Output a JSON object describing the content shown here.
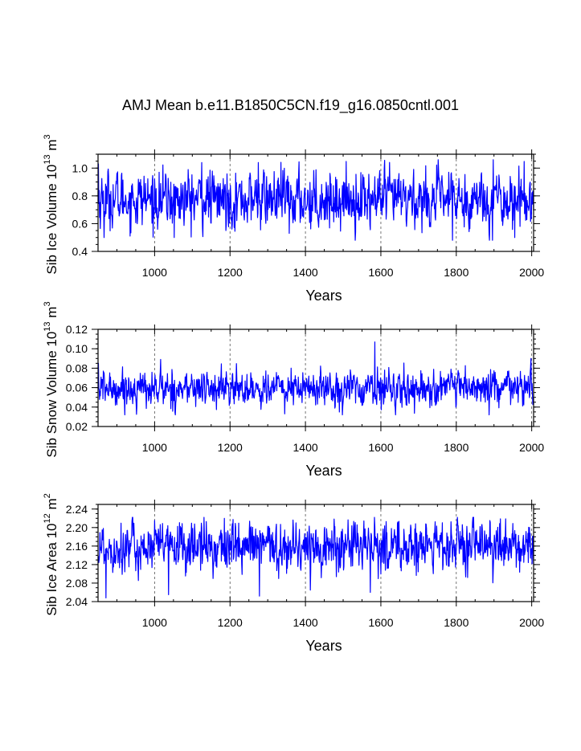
{
  "title": "AMJ Mean b.e11.B1850C5CN.f19_g16.0850cntl.001",
  "line_color": "#0000ff",
  "chart_data": [
    {
      "type": "line",
      "ylabel_main": "Sib Ice Volume 10",
      "ylabel_exp": "13",
      "ylabel_unit": " m",
      "ylabel_unit_exp": "3",
      "xlabel": "Years",
      "xlim": [
        850,
        2005
      ],
      "ylim": [
        0.4,
        1.1
      ],
      "xticks": [
        1000,
        1200,
        1400,
        1600,
        1800,
        2000
      ],
      "xtick_labels": [
        "1000",
        "1200",
        "1400",
        "1600",
        "1800",
        "2000"
      ],
      "yticks": [
        0.4,
        0.6,
        0.8,
        1.0
      ],
      "ytick_labels": [
        "0.4",
        "0.6",
        "0.8",
        "1.0"
      ],
      "gridlines_x": [
        1000,
        1200,
        1400,
        1600,
        1800,
        2000
      ],
      "x_start": 850,
      "x_end": 2005,
      "mean": 0.775,
      "std": 0.095,
      "series_min": 0.48,
      "series_max": 1.06,
      "spikes": [
        {
          "x": 851,
          "y": 1.03
        },
        {
          "x": 866,
          "y": 0.5
        },
        {
          "x": 1052,
          "y": 0.5
        },
        {
          "x": 1125,
          "y": 1.04
        },
        {
          "x": 1275,
          "y": 1.04
        },
        {
          "x": 1357,
          "y": 0.53
        },
        {
          "x": 1790,
          "y": 0.48
        },
        {
          "x": 1898,
          "y": 1.06
        },
        {
          "x": 1955,
          "y": 0.5
        }
      ]
    },
    {
      "type": "line",
      "ylabel_main": "Sib Snow Volume 10",
      "ylabel_exp": "13",
      "ylabel_unit": " m",
      "ylabel_unit_exp": "3",
      "xlabel": "Years",
      "xlim": [
        850,
        2005
      ],
      "ylim": [
        0.02,
        0.12
      ],
      "xticks": [
        1000,
        1200,
        1400,
        1600,
        1800,
        2000
      ],
      "xtick_labels": [
        "1000",
        "1200",
        "1400",
        "1600",
        "1800",
        "2000"
      ],
      "yticks": [
        0.02,
        0.04,
        0.06,
        0.08,
        0.1,
        0.12
      ],
      "ytick_labels": [
        "0.02",
        "0.04",
        "0.06",
        "0.08",
        "0.10",
        "0.12"
      ],
      "gridlines_x": [
        1000,
        1200,
        1400,
        1600,
        1800,
        2000
      ],
      "x_start": 850,
      "x_end": 2005,
      "mean": 0.059,
      "std": 0.0085,
      "series_min": 0.032,
      "series_max": 0.107,
      "spikes": [
        {
          "x": 851,
          "y": 0.085
        },
        {
          "x": 1016,
          "y": 0.089
        },
        {
          "x": 1345,
          "y": 0.033
        },
        {
          "x": 1584,
          "y": 0.107
        },
        {
          "x": 1998,
          "y": 0.09
        }
      ]
    },
    {
      "type": "line",
      "ylabel_main": "Sib Ice Area 10",
      "ylabel_exp": "12",
      "ylabel_unit": " m",
      "ylabel_unit_exp": "2",
      "xlabel": "Years",
      "xlim": [
        850,
        2005
      ],
      "ylim": [
        2.04,
        2.25
      ],
      "xticks": [
        1000,
        1200,
        1400,
        1600,
        1800,
        2000
      ],
      "xtick_labels": [
        "1000",
        "1200",
        "1400",
        "1600",
        "1800",
        "2000"
      ],
      "yticks": [
        2.04,
        2.08,
        2.12,
        2.16,
        2.2,
        2.24
      ],
      "ytick_labels": [
        "2.04",
        "2.08",
        "2.12",
        "2.16",
        "2.20",
        "2.24"
      ],
      "gridlines_x": [
        1000,
        1200,
        1400,
        1600,
        1800,
        2000
      ],
      "x_start": 850,
      "x_end": 2005,
      "mean": 2.158,
      "std": 0.026,
      "series_min": 2.048,
      "series_max": 2.222,
      "spikes": [
        {
          "x": 871,
          "y": 2.048
        },
        {
          "x": 1037,
          "y": 2.055
        },
        {
          "x": 1278,
          "y": 2.052
        },
        {
          "x": 1185,
          "y": 2.22
        },
        {
          "x": 1572,
          "y": 2.06
        }
      ]
    }
  ]
}
